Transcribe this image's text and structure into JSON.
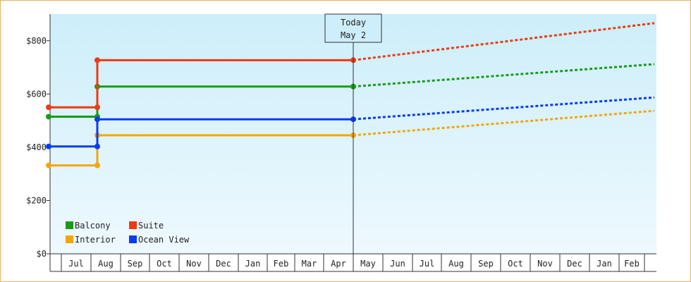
{
  "chart_data": {
    "type": "line",
    "title": "",
    "xlabel": "",
    "ylabel": "",
    "ylim": [
      0,
      900
    ],
    "yticks": [
      "$0",
      "$200",
      "$400",
      "$600",
      "$800"
    ],
    "ytick_values": [
      0,
      200,
      400,
      600,
      800
    ],
    "x_months": [
      "Jul",
      "Aug",
      "Sep",
      "Oct",
      "Nov",
      "Dec",
      "Jan",
      "Feb",
      "Mar",
      "Apr",
      "May",
      "Jun",
      "Jul",
      "Aug",
      "Sep",
      "Oct",
      "Nov",
      "Dec",
      "Jan",
      "Feb"
    ],
    "today_marker": {
      "line1": "Today",
      "line2": "May 2"
    },
    "colors": {
      "background_top": "#cdeefa",
      "background_bottom": "#eef9fe",
      "Balcony": "#1a9a1a",
      "Suite": "#ee3a10",
      "Interior": "#f5a50a",
      "Ocean View": "#0a3af5"
    },
    "series": [
      {
        "name": "Balcony",
        "history": [
          515,
          515,
          628,
          628
        ],
        "forecast": [
          628,
          712
        ]
      },
      {
        "name": "Suite",
        "history": [
          550,
          550,
          727,
          727
        ],
        "forecast": [
          727,
          866
        ]
      },
      {
        "name": "Interior",
        "history": [
          332,
          332,
          445,
          445
        ],
        "forecast": [
          445,
          537
        ]
      },
      {
        "name": "Ocean View",
        "history": [
          403,
          403,
          505,
          505
        ],
        "forecast": [
          505,
          587
        ]
      }
    ],
    "legend": {
      "position": "bottom-left",
      "items": [
        "Balcony",
        "Suite",
        "Interior",
        "Ocean View"
      ]
    },
    "grid": false
  }
}
